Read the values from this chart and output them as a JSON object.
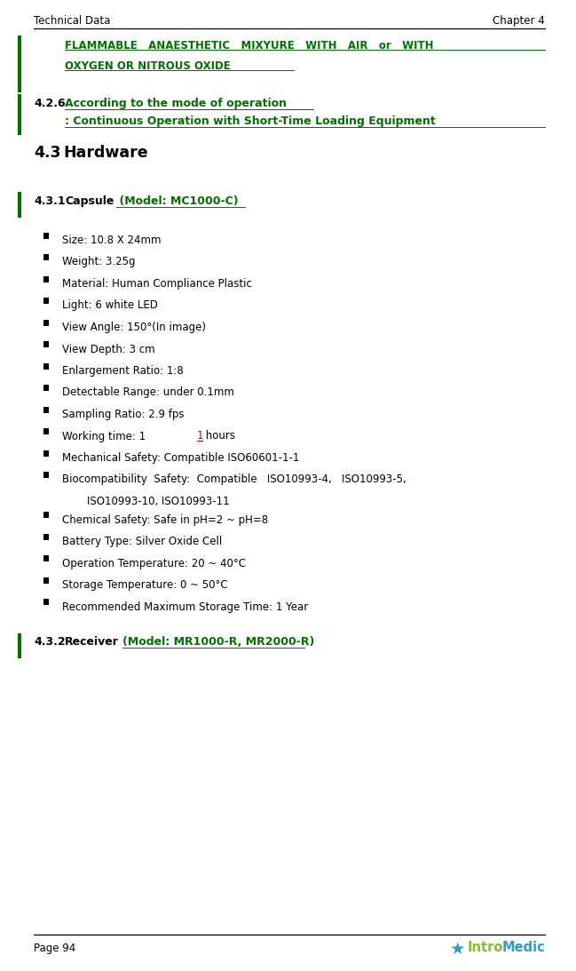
{
  "page_width": 6.49,
  "page_height": 10.93,
  "bg_color": "#ffffff",
  "header_left": "Technical Data",
  "header_right": "Chapter 4",
  "footer_left": "Page 94",
  "green": "#007000",
  "black": "#000000",
  "red": "#cc0000",
  "flammable_line1": "FLAMMABLE   ANAESTHETIC   MIXYURE   WITH   AIR   or   WITH",
  "flammable_line2": "OXYGEN OR NITROUS OXIDE",
  "sec426_num": "4.2.6",
  "sec426_line1": "According to the mode of operation",
  "sec426_line2": ": Continuous Operation with Short-Time Loading Equipment",
  "sec43_num": "4.3",
  "sec43_title": "Hardware",
  "sec431_num": "4.3.1",
  "sec431_label": "Capsule",
  "sec431_model": " (Model: MC1000-C)",
  "sec432_num": "4.3.2",
  "sec432_label": "Receiver",
  "sec432_model": "(Model: MR1000-R, MR2000-R)",
  "bullets": [
    "Size: 10.8 X 24mm",
    "Weight: 3.25g",
    "Material: Human Compliance Plastic",
    "Light: 6 white LED",
    "View Angle: 150°(In image)",
    "View Depth: 3 cm",
    "Enlargement Ratio: 1:8",
    "Detectable Range: under 0.1mm",
    "Sampling Ratio: 2.9 fps",
    "Working time: 11 hours",
    "Mechanical Safety: Compatible ISO60601-1-1",
    "Biocompatibility  Safety:  Compatible   ISO10993-4,   ISO10993-5,",
    "ISO10993-10, ISO10993-11",
    "Chemical Safety: Safe in pH=2 ~ pH=8",
    "Battery Type: Silver Oxide Cell",
    "Operation Temperature: 20 ~ 40°C",
    "Storage Temperature: 0 ~ 50°C",
    "Recommended Maximum Storage Time: 1 Year"
  ],
  "bullet_has_square": [
    true,
    true,
    true,
    true,
    true,
    true,
    true,
    true,
    true,
    true,
    true,
    true,
    false,
    true,
    true,
    true,
    true,
    true
  ],
  "working_time_pre": "Working time: 1",
  "working_time_red": "1",
  "working_time_post": " hours"
}
